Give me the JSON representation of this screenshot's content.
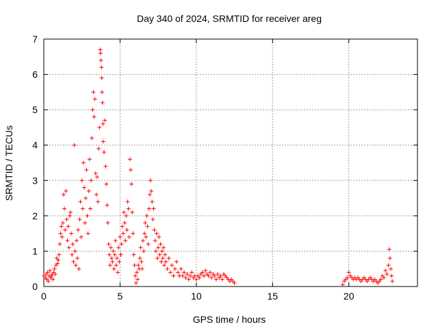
{
  "chart_data": {
    "type": "scatter",
    "title": "Day 340 of 2024, SRMTID for receiver areg",
    "xlabel": "GPS time / hours",
    "ylabel": "SRMTID / TECUs",
    "xlim": [
      0,
      24.5
    ],
    "ylim": [
      0,
      7
    ],
    "xticks": [
      0,
      5,
      10,
      15,
      20
    ],
    "yticks": [
      0,
      1,
      2,
      3,
      4,
      5,
      6,
      7
    ],
    "grid": true,
    "marker": "+",
    "color": "#ff0000",
    "series": [
      {
        "name": "SRMTID",
        "points": [
          [
            0.0,
            0.3
          ],
          [
            0.1,
            0.25
          ],
          [
            0.15,
            0.35
          ],
          [
            0.2,
            0.2
          ],
          [
            0.25,
            0.4
          ],
          [
            0.3,
            0.15
          ],
          [
            0.35,
            0.3
          ],
          [
            0.4,
            0.45
          ],
          [
            0.45,
            0.25
          ],
          [
            0.5,
            0.3
          ],
          [
            0.55,
            0.35
          ],
          [
            0.6,
            0.2
          ],
          [
            0.65,
            0.4
          ],
          [
            0.7,
            0.5
          ],
          [
            0.75,
            0.35
          ],
          [
            0.8,
            0.6
          ],
          [
            0.85,
            0.8
          ],
          [
            0.9,
            0.65
          ],
          [
            0.95,
            0.75
          ],
          [
            1.0,
            0.9
          ],
          [
            1.05,
            1.2
          ],
          [
            1.1,
            1.5
          ],
          [
            1.15,
            1.7
          ],
          [
            1.2,
            1.4
          ],
          [
            1.25,
            1.8
          ],
          [
            1.3,
            2.6
          ],
          [
            1.35,
            2.2
          ],
          [
            1.4,
            1.6
          ],
          [
            1.45,
            2.7
          ],
          [
            1.5,
            1.9
          ],
          [
            1.55,
            1.3
          ],
          [
            1.6,
            1.7
          ],
          [
            1.65,
            1.1
          ],
          [
            1.7,
            2.0
          ],
          [
            1.75,
            2.1
          ],
          [
            1.8,
            1.5
          ],
          [
            1.85,
            0.9
          ],
          [
            1.9,
            1.2
          ],
          [
            1.95,
            0.7
          ],
          [
            2.0,
            4.0
          ],
          [
            2.05,
            1.0
          ],
          [
            2.1,
            0.6
          ],
          [
            2.15,
            1.3
          ],
          [
            2.2,
            0.8
          ],
          [
            2.25,
            1.6
          ],
          [
            2.3,
            0.5
          ],
          [
            2.35,
            1.9
          ],
          [
            2.4,
            2.4
          ],
          [
            2.45,
            1.4
          ],
          [
            2.5,
            3.0
          ],
          [
            2.55,
            2.2
          ],
          [
            2.6,
            3.5
          ],
          [
            2.65,
            2.8
          ],
          [
            2.7,
            1.8
          ],
          [
            2.75,
            2.5
          ],
          [
            2.8,
            3.3
          ],
          [
            2.85,
            2.0
          ],
          [
            2.9,
            1.5
          ],
          [
            2.95,
            2.7
          ],
          [
            3.0,
            3.6
          ],
          [
            3.05,
            2.2
          ],
          [
            3.1,
            3.0
          ],
          [
            3.15,
            4.2
          ],
          [
            3.2,
            5.0
          ],
          [
            3.25,
            5.5
          ],
          [
            3.3,
            4.8
          ],
          [
            3.35,
            5.3
          ],
          [
            3.4,
            3.2
          ],
          [
            3.45,
            2.6
          ],
          [
            3.5,
            3.1
          ],
          [
            3.55,
            2.4
          ],
          [
            3.6,
            3.9
          ],
          [
            3.65,
            4.5
          ],
          [
            3.7,
            6.7
          ],
          [
            3.72,
            6.6
          ],
          [
            3.75,
            6.4
          ],
          [
            3.78,
            6.2
          ],
          [
            3.8,
            5.9
          ],
          [
            3.82,
            5.5
          ],
          [
            3.85,
            5.2
          ],
          [
            3.88,
            4.6
          ],
          [
            3.9,
            4.1
          ],
          [
            3.95,
            3.8
          ],
          [
            4.0,
            4.7
          ],
          [
            4.05,
            3.4
          ],
          [
            4.1,
            2.9
          ],
          [
            4.15,
            2.3
          ],
          [
            4.2,
            1.8
          ],
          [
            4.25,
            1.2
          ],
          [
            4.3,
            0.9
          ],
          [
            4.35,
            0.6
          ],
          [
            4.4,
            1.1
          ],
          [
            4.45,
            0.8
          ],
          [
            4.5,
            0.7
          ],
          [
            4.55,
            1.0
          ],
          [
            4.6,
            0.5
          ],
          [
            4.65,
            0.9
          ],
          [
            4.7,
            1.3
          ],
          [
            4.75,
            0.6
          ],
          [
            4.8,
            0.8
          ],
          [
            4.85,
            0.4
          ],
          [
            4.9,
            1.1
          ],
          [
            4.95,
            0.7
          ],
          [
            5.0,
            1.4
          ],
          [
            5.05,
            0.9
          ],
          [
            5.1,
            1.2
          ],
          [
            5.15,
            1.7
          ],
          [
            5.2,
            1.5
          ],
          [
            5.25,
            2.1
          ],
          [
            5.3,
            1.8
          ],
          [
            5.35,
            1.3
          ],
          [
            5.4,
            2.0
          ],
          [
            5.45,
            1.6
          ],
          [
            5.5,
            2.4
          ],
          [
            5.55,
            2.2
          ],
          [
            5.6,
            1.4
          ],
          [
            5.65,
            3.6
          ],
          [
            5.7,
            3.3
          ],
          [
            5.75,
            2.9
          ],
          [
            5.8,
            2.1
          ],
          [
            5.85,
            1.5
          ],
          [
            5.9,
            0.9
          ],
          [
            5.95,
            0.6
          ],
          [
            6.0,
            0.3
          ],
          [
            6.05,
            0.1
          ],
          [
            6.1,
            0.4
          ],
          [
            6.15,
            0.2
          ],
          [
            6.2,
            0.6
          ],
          [
            6.25,
            0.5
          ],
          [
            6.3,
            0.8
          ],
          [
            6.35,
            1.1
          ],
          [
            6.4,
            0.7
          ],
          [
            6.45,
            0.5
          ],
          [
            6.5,
            1.3
          ],
          [
            6.55,
            1.0
          ],
          [
            6.6,
            1.5
          ],
          [
            6.65,
            1.8
          ],
          [
            6.7,
            1.4
          ],
          [
            6.75,
            2.0
          ],
          [
            6.8,
            1.7
          ],
          [
            6.85,
            1.2
          ],
          [
            6.9,
            2.2
          ],
          [
            6.95,
            2.6
          ],
          [
            7.0,
            3.0
          ],
          [
            7.05,
            2.7
          ],
          [
            7.1,
            2.4
          ],
          [
            7.15,
            1.9
          ],
          [
            7.2,
            2.2
          ],
          [
            7.25,
            1.6
          ],
          [
            7.3,
            1.3
          ],
          [
            7.35,
            1.0
          ],
          [
            7.4,
            1.5
          ],
          [
            7.45,
            0.8
          ],
          [
            7.5,
            1.1
          ],
          [
            7.55,
            1.4
          ],
          [
            7.6,
            0.9
          ],
          [
            7.65,
            1.2
          ],
          [
            7.7,
            0.7
          ],
          [
            7.75,
            1.0
          ],
          [
            7.8,
            0.8
          ],
          [
            7.85,
            1.1
          ],
          [
            7.9,
            0.6
          ],
          [
            7.95,
            0.9
          ],
          [
            8.0,
            0.7
          ],
          [
            8.1,
            0.5
          ],
          [
            8.2,
            0.8
          ],
          [
            8.3,
            0.4
          ],
          [
            8.4,
            0.6
          ],
          [
            8.5,
            0.3
          ],
          [
            8.6,
            0.5
          ],
          [
            8.7,
            0.7
          ],
          [
            8.8,
            0.4
          ],
          [
            8.9,
            0.3
          ],
          [
            9.0,
            0.5
          ],
          [
            9.1,
            0.3
          ],
          [
            9.2,
            0.4
          ],
          [
            9.3,
            0.25
          ],
          [
            9.4,
            0.35
          ],
          [
            9.5,
            0.2
          ],
          [
            9.6,
            0.3
          ],
          [
            9.7,
            0.4
          ],
          [
            9.8,
            0.25
          ],
          [
            9.9,
            0.3
          ],
          [
            10.0,
            0.2
          ],
          [
            10.1,
            0.3
          ],
          [
            10.2,
            0.25
          ],
          [
            10.3,
            0.35
          ],
          [
            10.4,
            0.4
          ],
          [
            10.5,
            0.3
          ],
          [
            10.6,
            0.45
          ],
          [
            10.7,
            0.35
          ],
          [
            10.8,
            0.3
          ],
          [
            10.9,
            0.4
          ],
          [
            11.0,
            0.25
          ],
          [
            11.1,
            0.35
          ],
          [
            11.2,
            0.3
          ],
          [
            11.3,
            0.2
          ],
          [
            11.4,
            0.35
          ],
          [
            11.5,
            0.25
          ],
          [
            11.6,
            0.3
          ],
          [
            11.7,
            0.2
          ],
          [
            11.8,
            0.35
          ],
          [
            11.9,
            0.3
          ],
          [
            12.0,
            0.25
          ],
          [
            12.1,
            0.2
          ],
          [
            12.2,
            0.15
          ],
          [
            12.3,
            0.2
          ],
          [
            12.4,
            0.15
          ],
          [
            12.5,
            0.1
          ],
          [
            19.6,
            0.05
          ],
          [
            19.7,
            0.15
          ],
          [
            19.8,
            0.2
          ],
          [
            19.9,
            0.25
          ],
          [
            20.0,
            0.4
          ],
          [
            20.1,
            0.3
          ],
          [
            20.2,
            0.25
          ],
          [
            20.3,
            0.2
          ],
          [
            20.4,
            0.25
          ],
          [
            20.5,
            0.2
          ],
          [
            20.6,
            0.25
          ],
          [
            20.7,
            0.2
          ],
          [
            20.8,
            0.15
          ],
          [
            20.9,
            0.2
          ],
          [
            21.0,
            0.25
          ],
          [
            21.1,
            0.2
          ],
          [
            21.2,
            0.15
          ],
          [
            21.3,
            0.2
          ],
          [
            21.4,
            0.25
          ],
          [
            21.5,
            0.2
          ],
          [
            21.6,
            0.15
          ],
          [
            21.7,
            0.2
          ],
          [
            21.8,
            0.15
          ],
          [
            21.9,
            0.1
          ],
          [
            22.0,
            0.15
          ],
          [
            22.1,
            0.2
          ],
          [
            22.2,
            0.3
          ],
          [
            22.3,
            0.25
          ],
          [
            22.4,
            0.45
          ],
          [
            22.5,
            0.35
          ],
          [
            22.6,
            0.6
          ],
          [
            22.65,
            1.05
          ],
          [
            22.7,
            0.8
          ],
          [
            22.75,
            0.5
          ],
          [
            22.8,
            0.3
          ],
          [
            22.85,
            0.15
          ]
        ]
      }
    ]
  }
}
